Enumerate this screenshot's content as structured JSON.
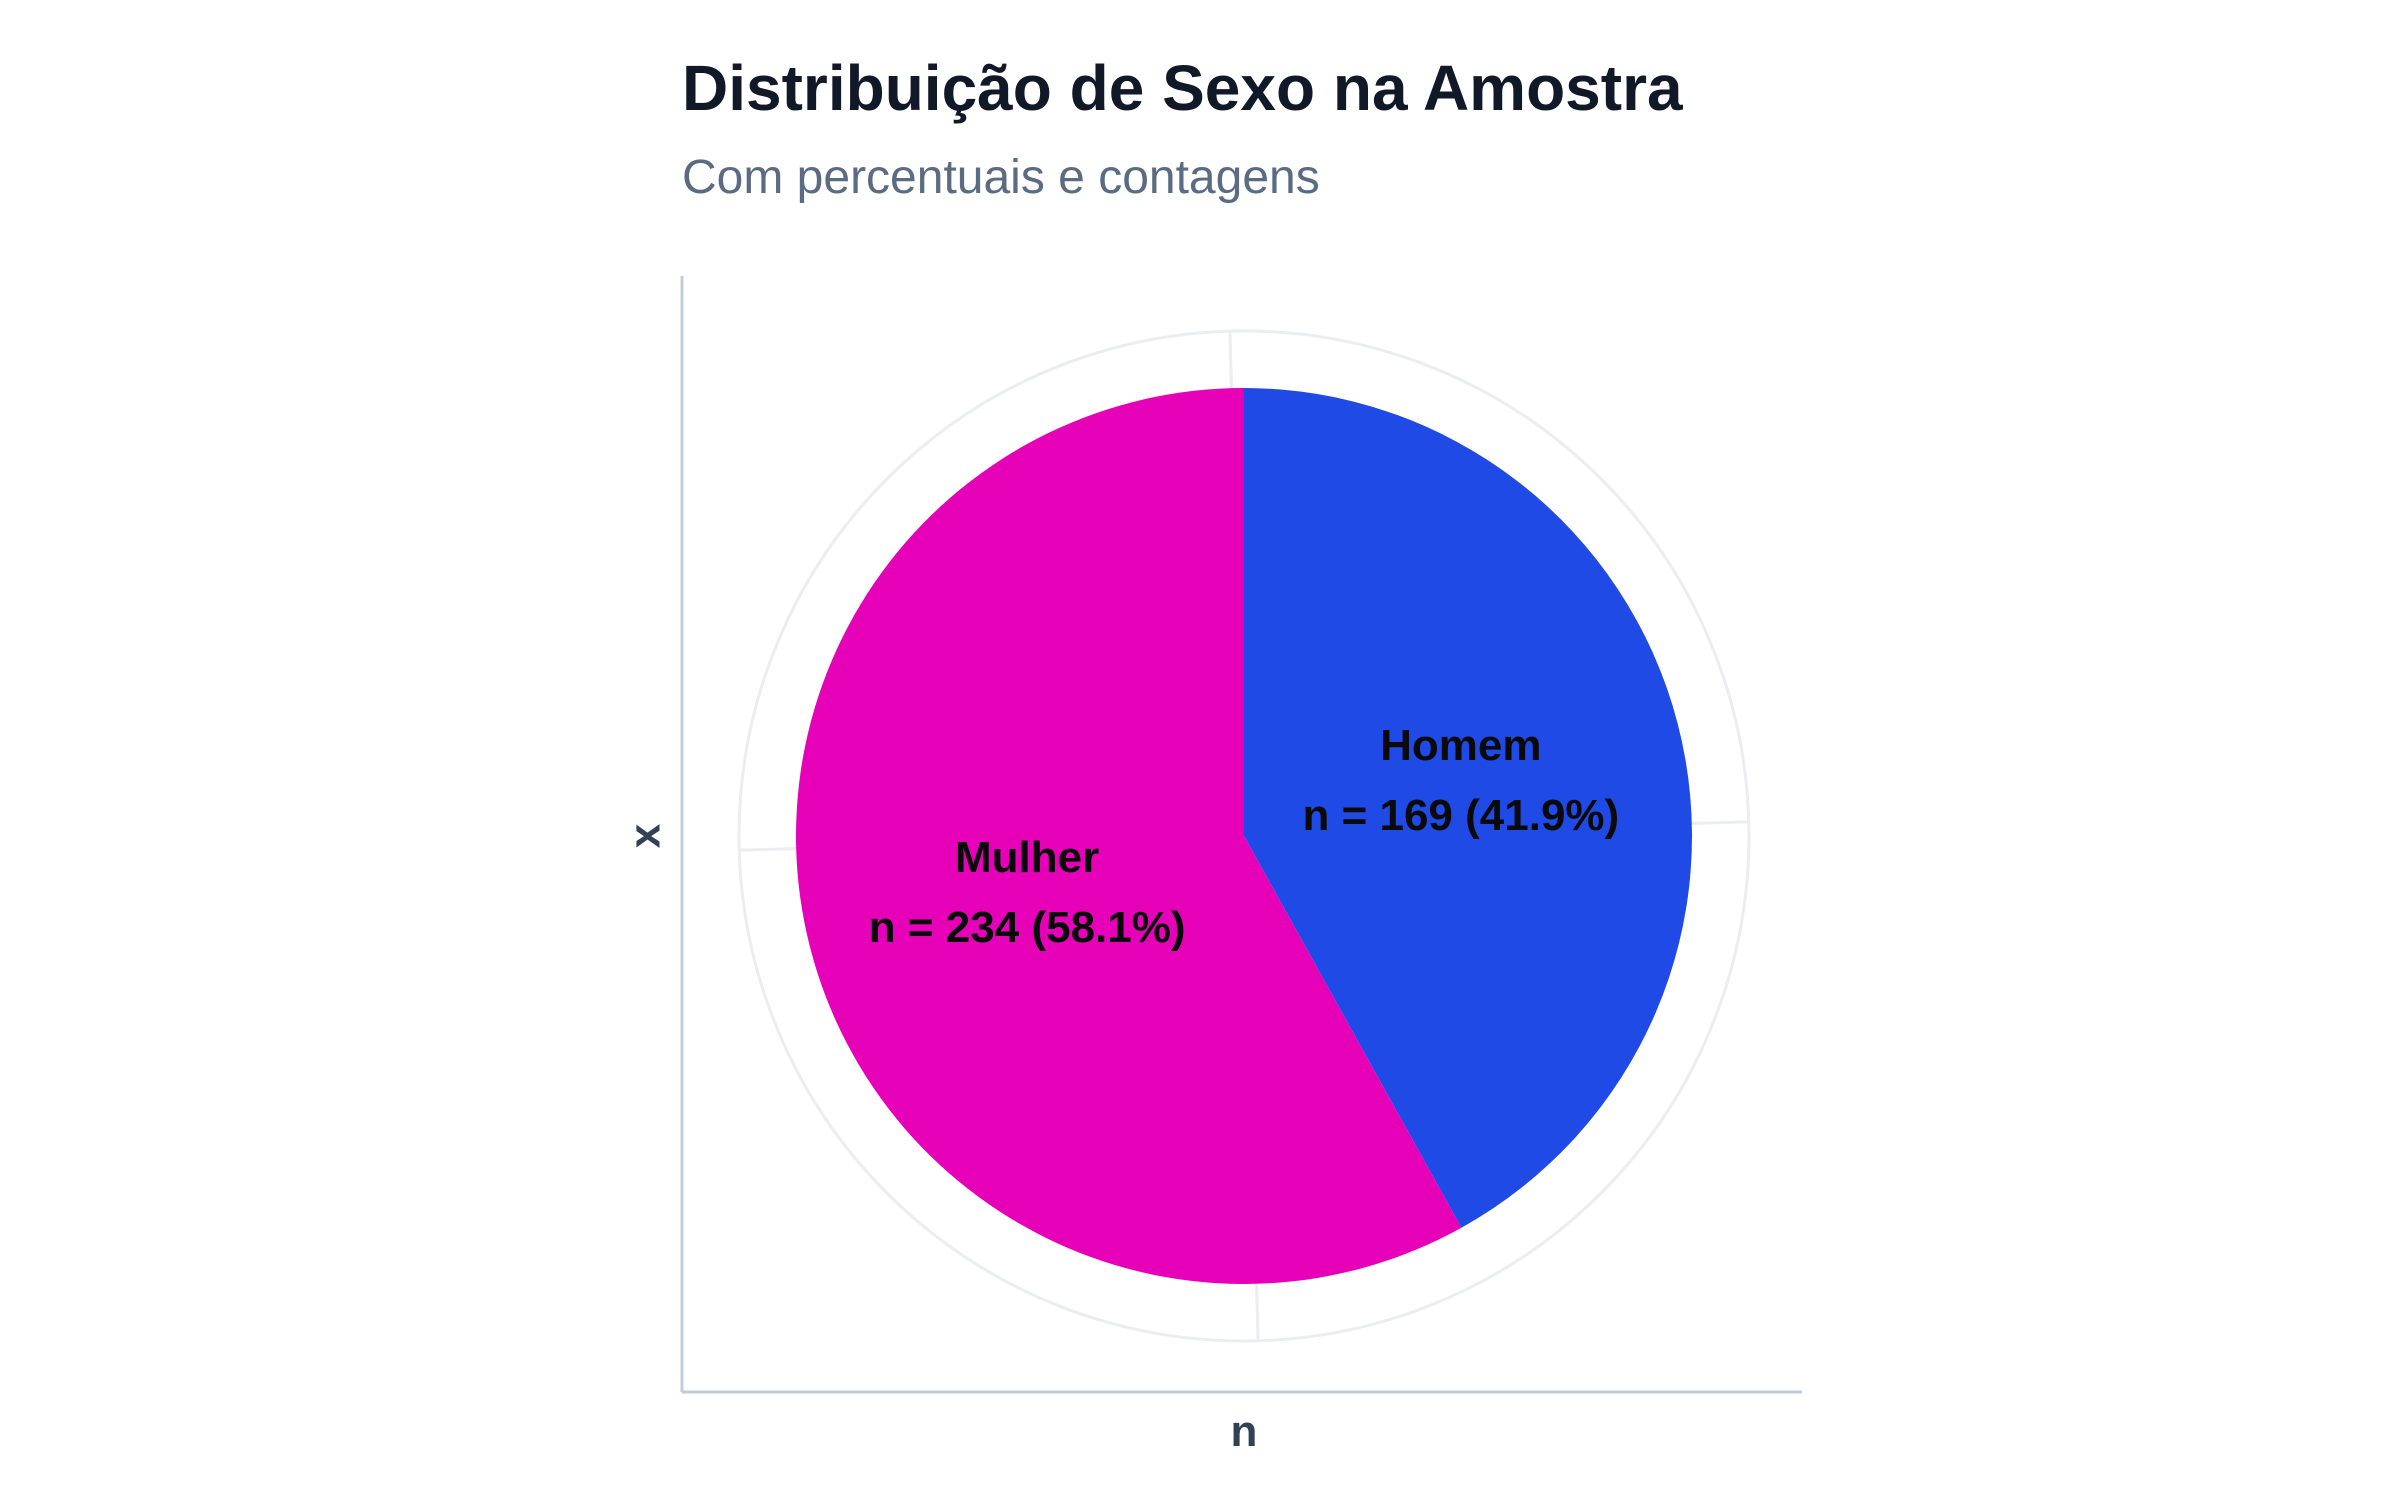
{
  "chart_data": {
    "type": "pie",
    "title": "Distribuição de Sexo na Amostra",
    "subtitle": "Com percentuais e contagens",
    "xlabel": "n",
    "ylabel": "x",
    "slices": [
      {
        "label": "Homem",
        "value": 169,
        "percent": 41.9,
        "text": "n = 169 (41.9%)",
        "color": "#1f4ae6"
      },
      {
        "label": "Mulher",
        "value": 234,
        "percent": 58.1,
        "text": "n = 234 (58.1%)",
        "color": "#e600b8"
      }
    ],
    "start_angle": "12 o'clock",
    "direction": "clockwise",
    "grid": true,
    "legend": "none"
  }
}
